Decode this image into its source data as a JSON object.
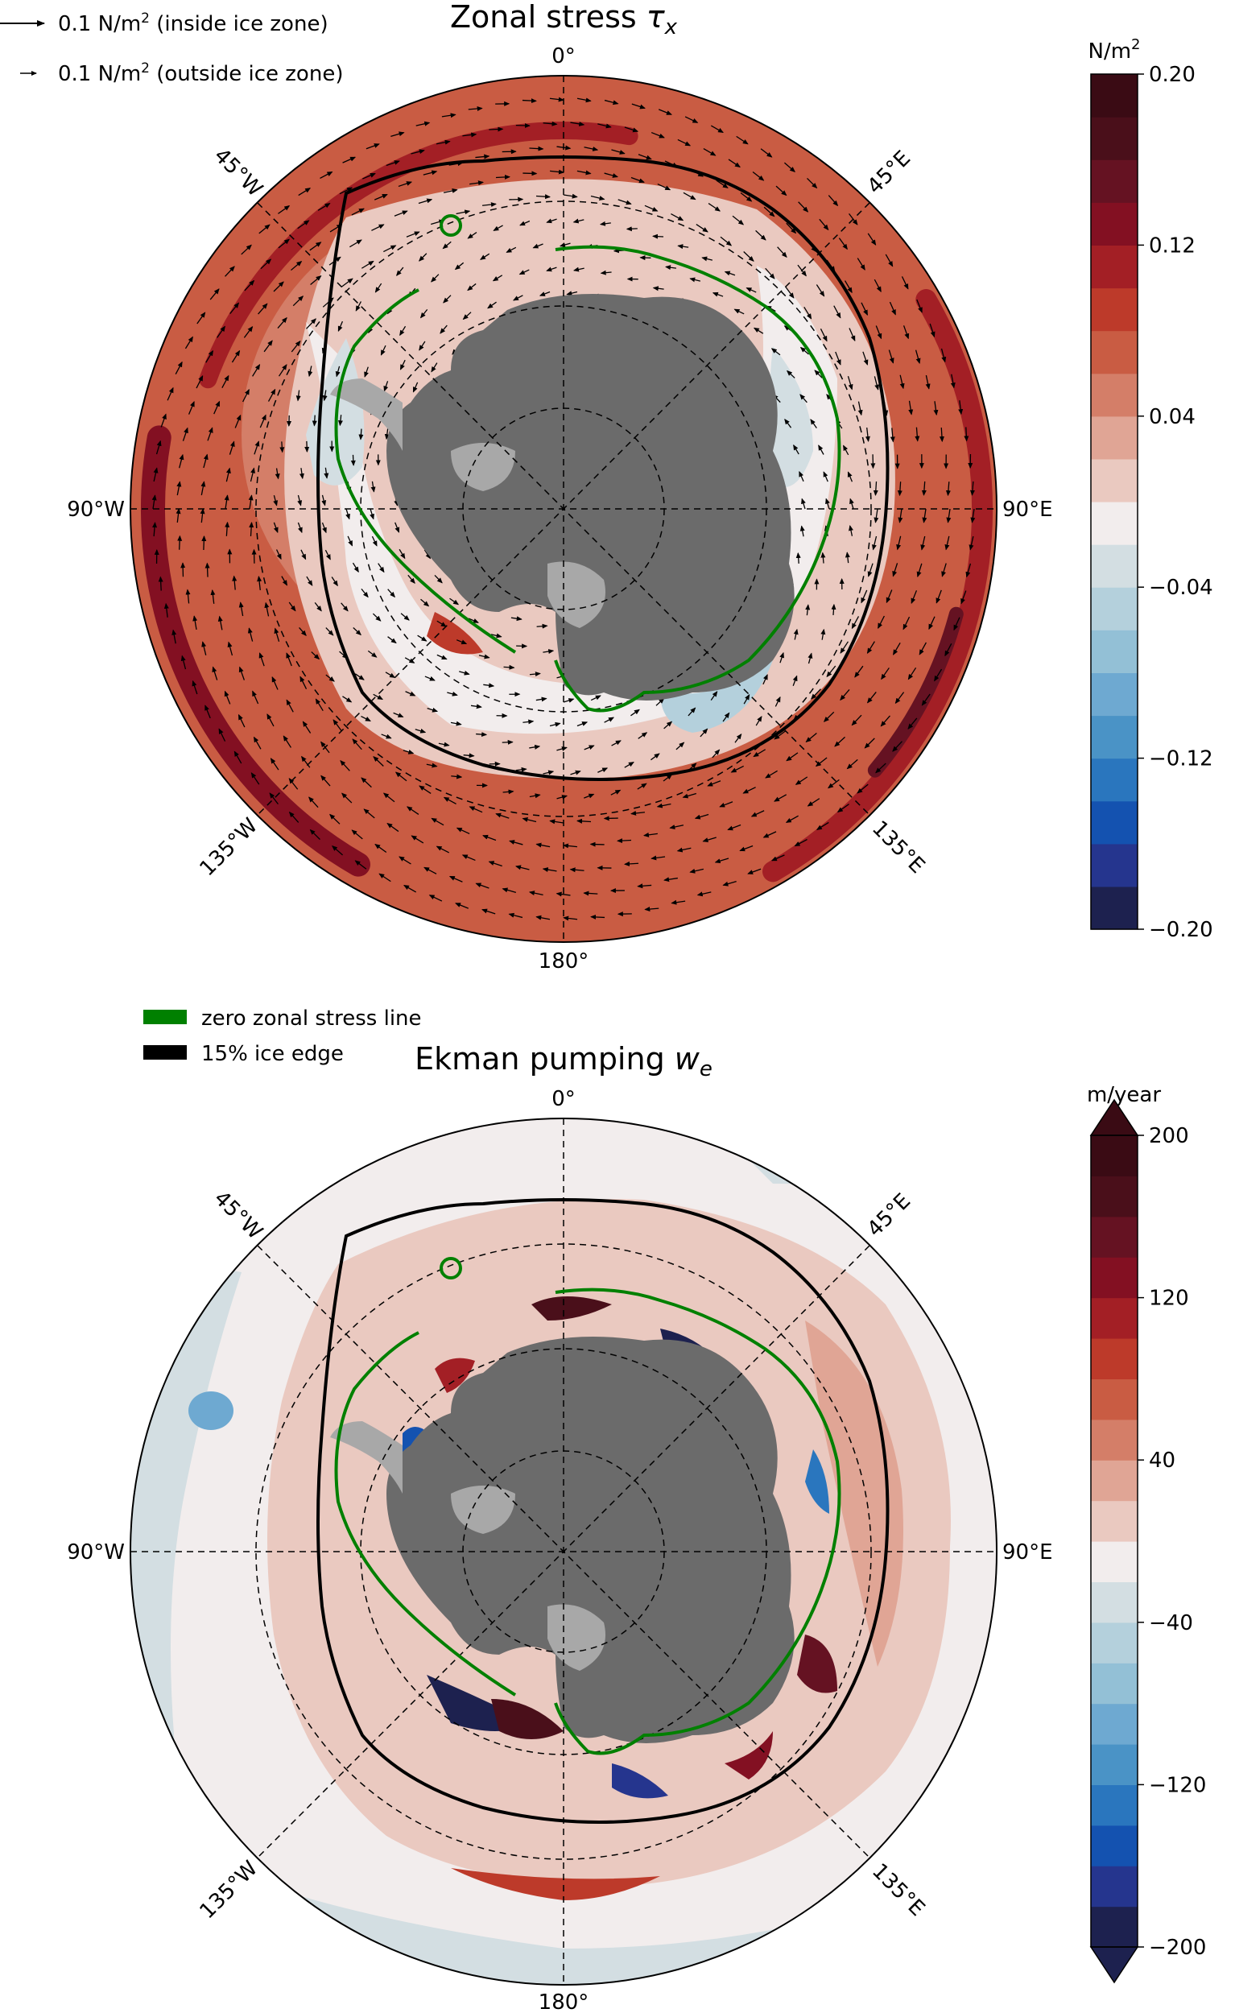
{
  "chart_data": [
    {
      "type": "heatmap",
      "projection": "south-polar-stereographic",
      "title": "Zonal stress τx",
      "title_main": "Zonal stress ",
      "title_var": "τ",
      "title_sub": "x",
      "longitude_labels": [
        "0°",
        "45°E",
        "90°E",
        "135°E",
        "180°",
        "135°W",
        "90°W",
        "45°W"
      ],
      "vector_legend": [
        {
          "label_pre": "0.1 N/m",
          "label_sup": "2",
          "label_post": " (inside ice zone)"
        },
        {
          "label_pre": "0.1 N/m",
          "label_sup": "2",
          "label_post": " (outside ice zone)"
        }
      ],
      "colorbar": {
        "unit_pre": "N/m",
        "unit_sup": "2",
        "range": [
          -0.2,
          0.2
        ],
        "levels": [
          -0.2,
          -0.18,
          -0.16,
          -0.14,
          -0.12,
          -0.1,
          -0.08,
          -0.06,
          -0.04,
          -0.02,
          0.0,
          0.02,
          0.04,
          0.06,
          0.08,
          0.1,
          0.12,
          0.14,
          0.16,
          0.18,
          0.2
        ],
        "tick_values": [
          0.2,
          0.12,
          0.04,
          -0.04,
          -0.12,
          -0.2
        ],
        "tick_labels": [
          "0.20",
          "0.12",
          "0.04",
          "−0.04",
          "−0.12",
          "−0.20"
        ],
        "extend": "neither"
      }
    },
    {
      "type": "heatmap",
      "projection": "south-polar-stereographic",
      "title": "Ekman pumping we",
      "title_main": "Ekman pumping ",
      "title_var": "w",
      "title_sub": "e",
      "longitude_labels": [
        "0°",
        "45°E",
        "90°E",
        "135°E",
        "180°",
        "135°W",
        "90°W",
        "45°W"
      ],
      "contour_legend": [
        {
          "label": "zero zonal stress line",
          "color": "#008000"
        },
        {
          "label": "15% ice edge",
          "color": "#000000"
        }
      ],
      "colorbar": {
        "unit": "m/year",
        "range": [
          -200,
          200
        ],
        "levels": [
          -200,
          -180,
          -160,
          -140,
          -120,
          -100,
          -80,
          -60,
          -40,
          -20,
          0,
          20,
          40,
          60,
          80,
          100,
          120,
          140,
          160,
          180,
          200
        ],
        "tick_values": [
          200,
          120,
          40,
          -40,
          -120,
          -200
        ],
        "tick_labels": [
          "200",
          "120",
          "40",
          "−40",
          "−120",
          "−200"
        ],
        "extend": "both"
      }
    }
  ],
  "colors": {
    "land": "#6b6b6b",
    "ice_shelf": "#a8a8a8",
    "zero_stress_line": "#008000",
    "ice_edge": "#000000",
    "colormap": [
      "#1d214f",
      "#25358e",
      "#1452b0",
      "#2a76be",
      "#4a93c6",
      "#6ea9d1",
      "#93c0d6",
      "#b4d0dc",
      "#d3dee2",
      "#f2eded",
      "#eac9c0",
      "#e0a595",
      "#d47e68",
      "#c95c43",
      "#bd3a2a",
      "#a31f25",
      "#831022",
      "#651222",
      "#4a0f1a",
      "#3a0b14"
    ]
  }
}
